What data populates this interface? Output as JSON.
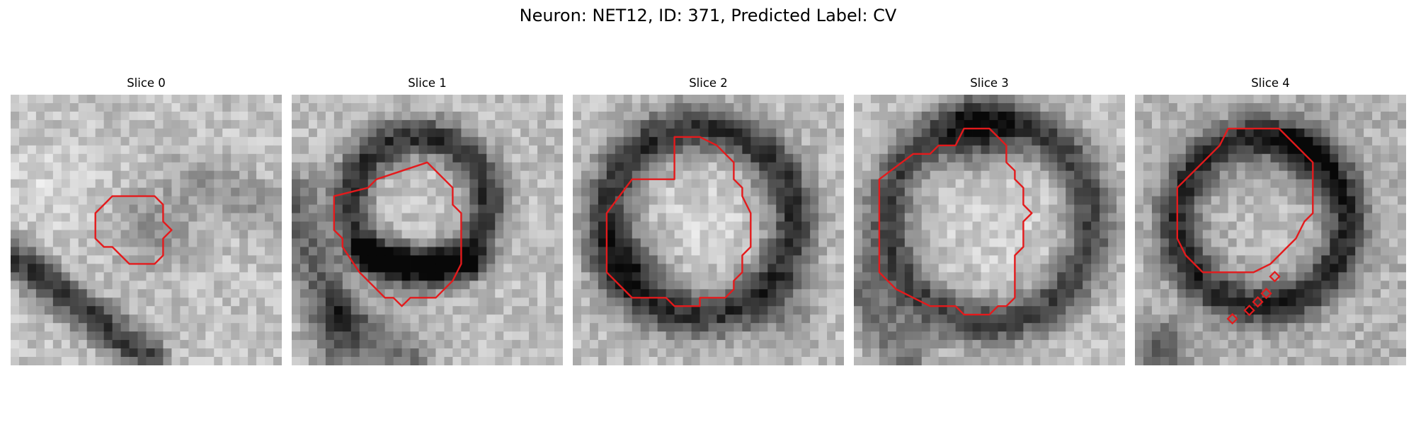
{
  "figure": {
    "title": "Neuron: NET12, ID: 371, Predicted Label: CV",
    "outline_color": "#e41a1c",
    "colormap": "gray"
  },
  "panels": [
    {
      "title": "Slice 0"
    },
    {
      "title": "Slice 1"
    },
    {
      "title": "Slice 2"
    },
    {
      "title": "Slice 3"
    },
    {
      "title": "Slice 4"
    }
  ]
}
